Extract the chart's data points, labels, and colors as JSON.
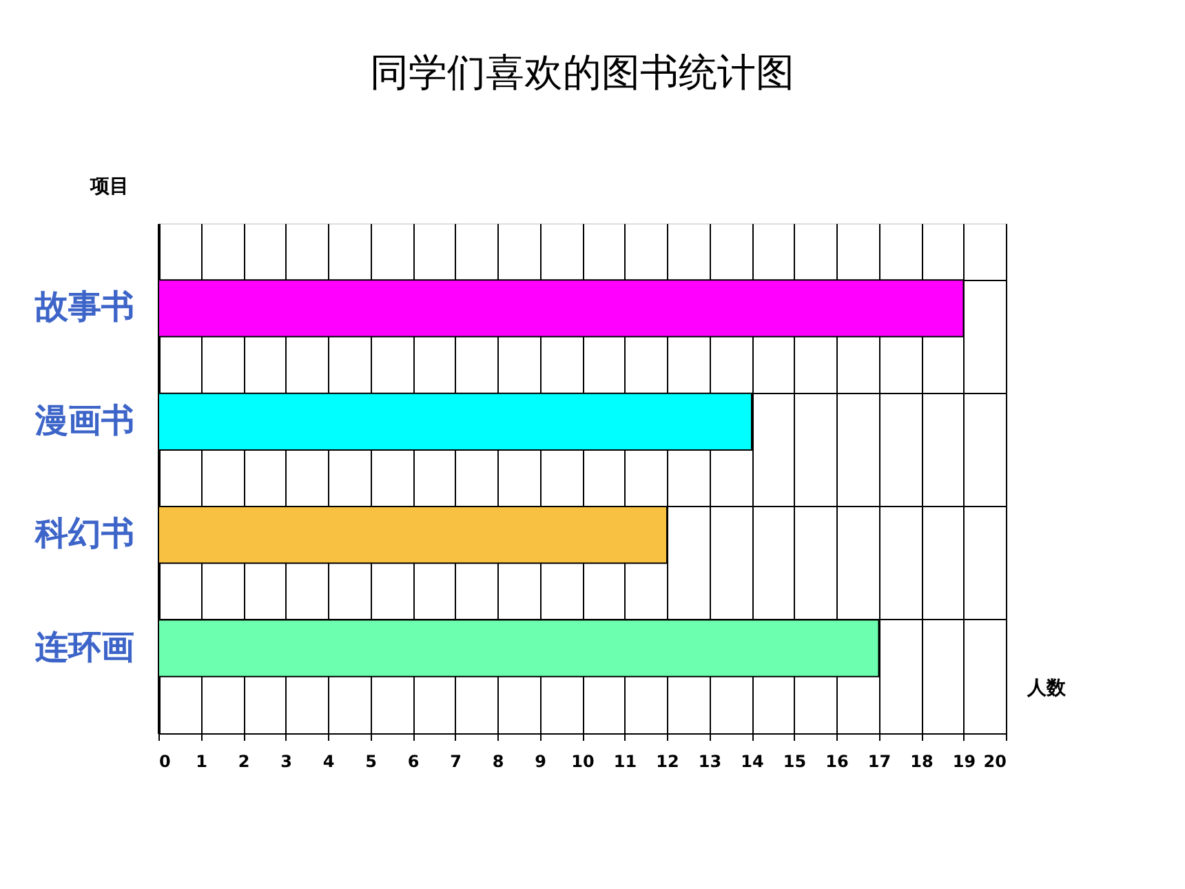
{
  "chart_data": {
    "type": "bar",
    "orientation": "horizontal",
    "title": "同学们喜欢的图书统计图",
    "xlabel": "人数",
    "ylabel": "项目",
    "categories": [
      "故事书",
      "漫画书",
      "科幻书",
      "连环画"
    ],
    "values": [
      19,
      14,
      12,
      17
    ],
    "colors": [
      "#ff00ff",
      "#00ffff",
      "#f9c142",
      "#6dffb0"
    ],
    "xlim": [
      0,
      20
    ],
    "xticks": [
      0,
      1,
      2,
      3,
      4,
      5,
      6,
      7,
      8,
      9,
      10,
      11,
      12,
      13,
      14,
      15,
      16,
      17,
      18,
      19,
      20
    ],
    "grid": true
  }
}
